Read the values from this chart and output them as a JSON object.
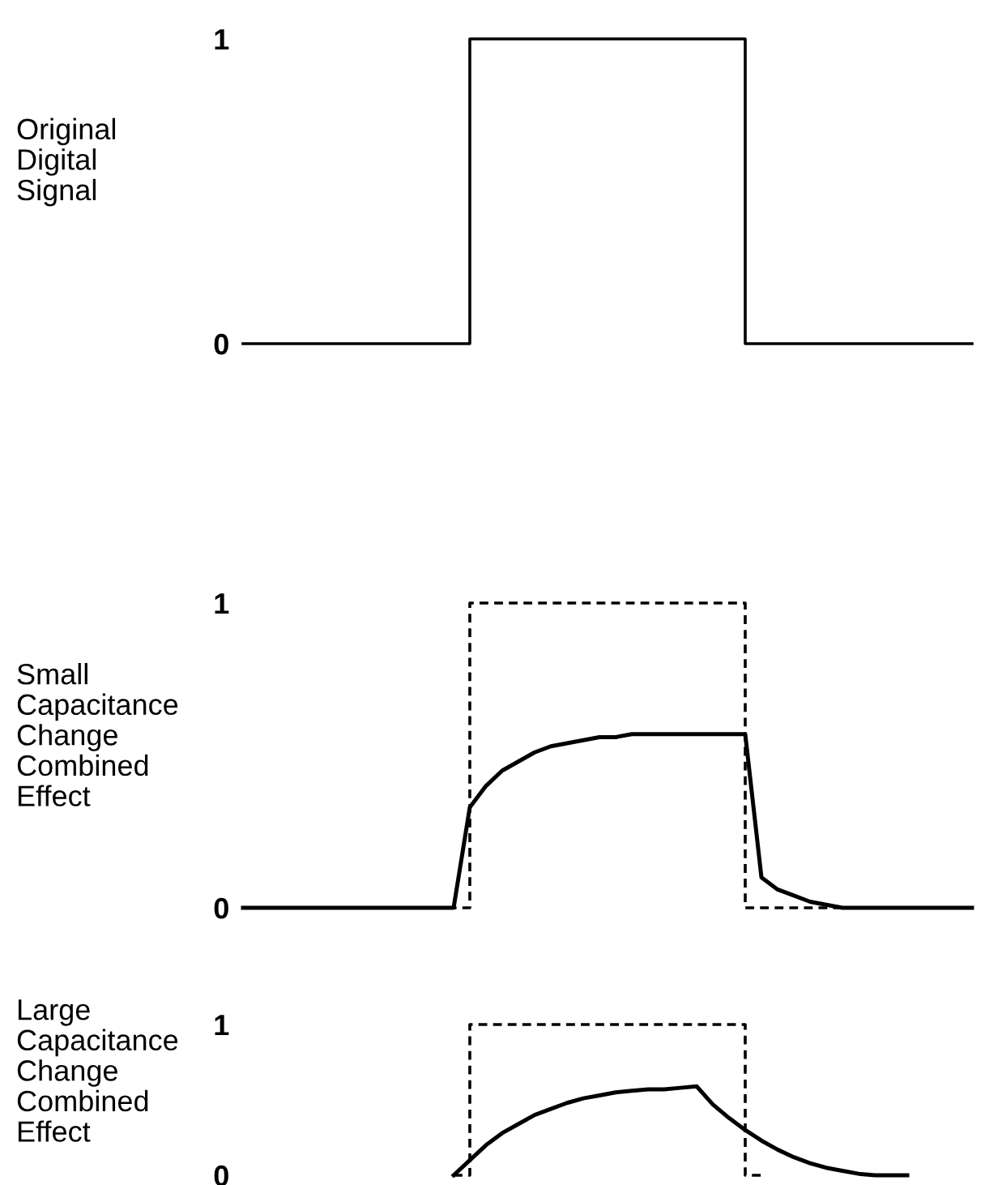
{
  "chart_data": [
    {
      "type": "line",
      "ylabel": "Original\nDigital\nSignal",
      "categories": [
        null,
        null,
        null,
        null,
        null,
        null,
        null,
        null,
        null,
        null,
        null,
        null,
        null,
        null,
        null,
        null,
        null,
        null,
        null,
        null,
        null,
        null,
        null,
        null,
        null,
        null,
        null,
        null,
        null,
        null,
        null,
        null,
        null,
        null,
        null,
        null,
        null,
        null,
        null,
        null,
        null,
        null,
        null,
        null,
        null,
        null
      ],
      "ylim": [
        0,
        1
      ],
      "yticks": [
        0,
        1
      ],
      "tick_labels": "y",
      "grid": false,
      "legend": false,
      "marker": "none",
      "series": [
        {
          "type": "step",
          "color": "#000000",
          "line_style": "solid",
          "values": [
            0,
            0,
            0,
            0,
            0,
            0,
            0,
            0,
            0,
            0,
            0,
            0,
            0,
            0,
            1,
            1,
            1,
            1,
            1,
            1,
            1,
            1,
            1,
            1,
            1,
            1,
            1,
            1,
            1,
            1,
            1,
            0,
            0,
            0,
            0,
            0,
            0,
            0,
            0,
            0,
            0,
            0,
            0,
            0,
            0,
            0
          ]
        }
      ]
    },
    {
      "type": "line",
      "ylabel": "Small\nCapacitance\nChange\nCombined\nEffect",
      "categories": [
        null,
        null,
        null,
        null,
        null,
        null,
        null,
        null,
        null,
        null,
        null,
        null,
        null,
        null,
        null,
        null,
        null,
        null,
        null,
        null,
        null,
        null,
        null,
        null,
        null,
        null,
        null,
        null,
        null,
        null,
        null,
        null,
        null,
        null,
        null,
        null,
        null,
        null,
        null,
        null,
        null,
        null,
        null,
        null,
        null,
        null
      ],
      "ylim": [
        0,
        1
      ],
      "yticks": [
        0,
        1
      ],
      "tick_labels": "y",
      "grid": false,
      "legend": false,
      "marker": "none",
      "series": [
        {
          "type": "step",
          "color": "#000000",
          "line_style": "dashed",
          "values": [
            0,
            0,
            0,
            0,
            0,
            0,
            0,
            0,
            0,
            0,
            0,
            0,
            0,
            0,
            1,
            1,
            1,
            1,
            1,
            1,
            1,
            1,
            1,
            1,
            1,
            1,
            1,
            1,
            1,
            1,
            1,
            0,
            0,
            0,
            0,
            0,
            0,
            0,
            0,
            0,
            0,
            0,
            0,
            0,
            0,
            0
          ]
        },
        {
          "type": "line",
          "color": "#000000",
          "line_style": "solid",
          "values": [
            0,
            0,
            0,
            0,
            0,
            0,
            0,
            0,
            0,
            0,
            0,
            0,
            0,
            0,
            0.33,
            0.4,
            0.45,
            0.48,
            0.51,
            0.53,
            0.54,
            0.55,
            0.56,
            0.56,
            0.57,
            0.57,
            0.57,
            0.57,
            0.57,
            0.57,
            0.57,
            0.57,
            0.1,
            0.06,
            0.04,
            0.02,
            0.01,
            0,
            0,
            0,
            0,
            0,
            0,
            0,
            0,
            0
          ]
        }
      ]
    },
    {
      "type": "line",
      "ylabel": "Large\nCapacitance\nChange\nCombined\nEffect",
      "categories": [
        null,
        null,
        null,
        null,
        null,
        null,
        null,
        null,
        null,
        null,
        null,
        null,
        null,
        null,
        null,
        null,
        null,
        null,
        null,
        null,
        null,
        null,
        null,
        null,
        null,
        null,
        null,
        null,
        null,
        null,
        null,
        null,
        null,
        null,
        null,
        null,
        null,
        null,
        null,
        null,
        null,
        null,
        null,
        null,
        null,
        null
      ],
      "ylim": [
        0,
        1
      ],
      "yticks": [
        0,
        1
      ],
      "tick_labels": "y",
      "grid": false,
      "legend": false,
      "marker": "none",
      "series": [
        {
          "type": "step",
          "color": "#000000",
          "line_style": "dashed",
          "values": [
            null,
            null,
            null,
            null,
            null,
            null,
            null,
            null,
            null,
            null,
            null,
            null,
            null,
            0,
            1,
            1,
            1,
            1,
            1,
            1,
            1,
            1,
            1,
            1,
            1,
            1,
            1,
            1,
            1,
            1,
            1,
            0,
            0,
            null,
            null,
            null,
            null,
            null,
            null,
            null,
            null,
            null,
            null,
            null,
            null,
            null
          ]
        },
        {
          "type": "line",
          "color": "#000000",
          "line_style": "solid",
          "values": [
            null,
            null,
            null,
            null,
            null,
            null,
            null,
            null,
            null,
            null,
            null,
            null,
            null,
            0,
            0.1,
            0.2,
            0.28,
            0.34,
            0.4,
            0.44,
            0.48,
            0.51,
            0.53,
            0.55,
            0.56,
            0.57,
            0.57,
            0.58,
            0.59,
            0.47,
            0.38,
            0.3,
            0.23,
            0.17,
            0.12,
            0.08,
            0.05,
            0.03,
            0.01,
            0,
            0,
            0,
            null,
            null,
            null,
            null
          ]
        }
      ]
    }
  ]
}
